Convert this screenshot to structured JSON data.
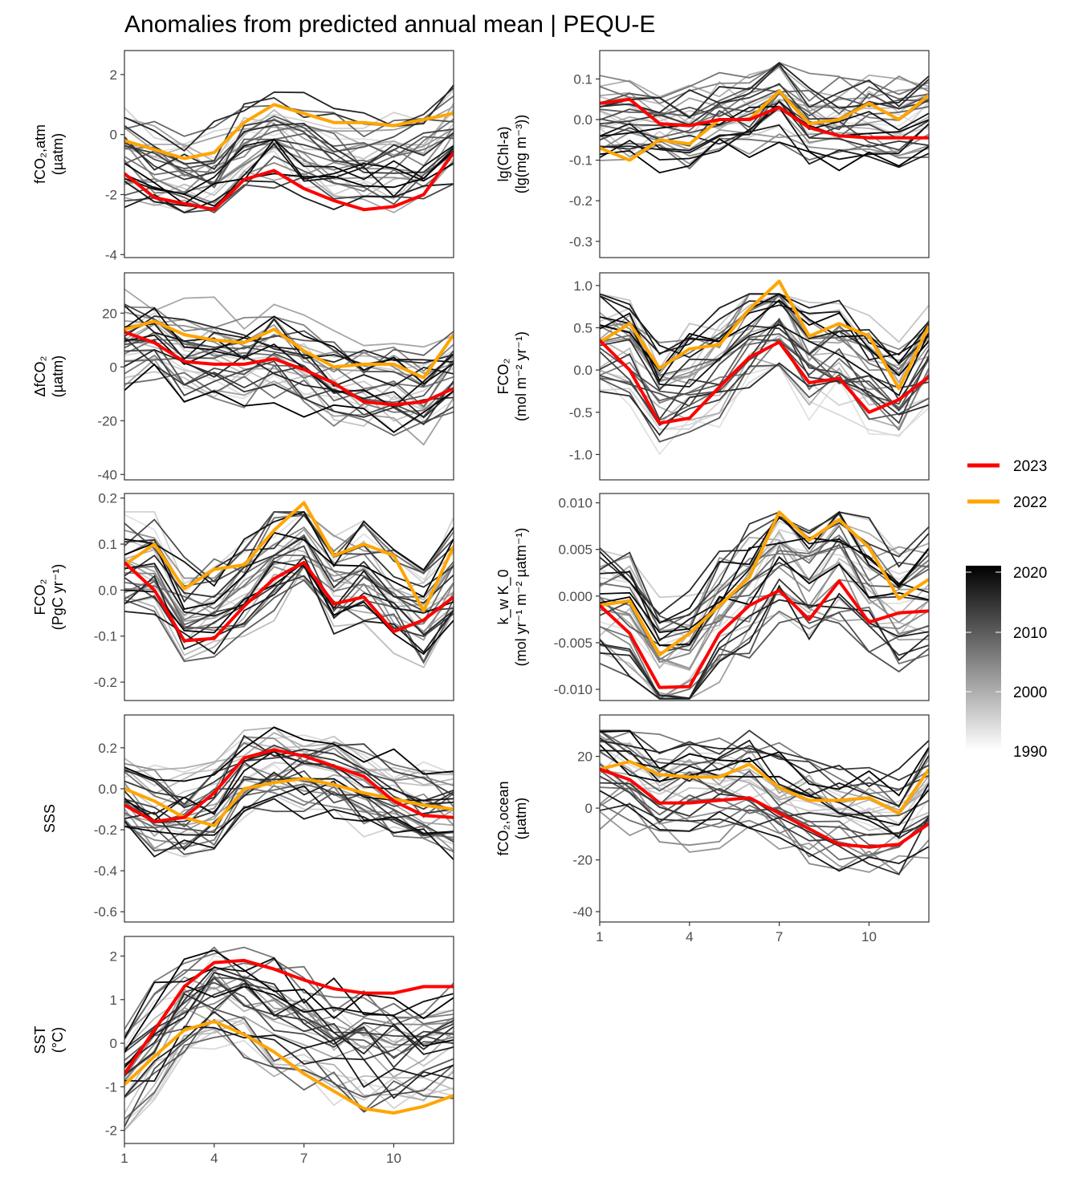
{
  "title": "Anomalies from predicted annual mean | PEQU-E",
  "legend": {
    "lines": [
      {
        "label": "2023",
        "color": "#ff0000"
      },
      {
        "label": "2022",
        "color": "#ffa500"
      }
    ],
    "colorbar": {
      "labels": [
        "2020",
        "2010",
        "2000",
        "1990"
      ],
      "range": [
        1990,
        2020
      ]
    }
  },
  "x_ticks": [
    "1",
    "4",
    "7",
    "10"
  ],
  "chart_data": [
    {
      "type": "line",
      "ylabel": [
        "fCO₂,atm",
        "(µatm)"
      ],
      "ylim": [
        -4.1,
        2.8
      ],
      "y_ticks": [
        "2",
        "0",
        "-2",
        "-4"
      ],
      "y_tick_values": [
        2,
        0,
        -2,
        -4
      ],
      "x": [
        1,
        2,
        3,
        4,
        5,
        6,
        7,
        8,
        9,
        10,
        11,
        12
      ],
      "series": [
        {
          "name": "2023",
          "values": [
            -1.3,
            -2.1,
            -2.3,
            -2.5,
            -1.5,
            -1.2,
            -1.8,
            -2.2,
            -2.5,
            -2.4,
            -2.0,
            -0.6
          ]
        },
        {
          "name": "2022",
          "values": [
            -0.2,
            -0.5,
            -0.8,
            -0.6,
            0.4,
            1.0,
            0.7,
            0.4,
            0.4,
            0.3,
            0.5,
            0.7
          ]
        }
      ],
      "background_range": [
        -2.6,
        2.4
      ]
    },
    {
      "type": "line",
      "ylabel": [
        "lg(Chl-a)",
        "(lg(mg m⁻³))"
      ],
      "ylim": [
        -0.34,
        0.17
      ],
      "y_ticks": [
        "0.1",
        "0.0",
        "-0.1",
        "-0.2",
        "-0.3"
      ],
      "y_tick_values": [
        0.1,
        0.0,
        -0.1,
        -0.2,
        -0.3
      ],
      "x": [
        1,
        2,
        3,
        4,
        5,
        6,
        7,
        8,
        9,
        10,
        11,
        12
      ],
      "series": [
        {
          "name": "2023",
          "values": [
            0.04,
            0.05,
            -0.01,
            -0.015,
            0.0,
            0.0,
            0.03,
            -0.02,
            -0.04,
            -0.045,
            -0.045,
            -0.045
          ]
        },
        {
          "name": "2022",
          "values": [
            -0.07,
            -0.1,
            -0.05,
            -0.06,
            0.0,
            0.0,
            0.07,
            -0.01,
            0.0,
            0.04,
            0.0,
            0.06
          ]
        }
      ],
      "background_range": [
        -0.2,
        0.14
      ]
    },
    {
      "type": "line",
      "ylabel": [
        "ΔfCO₂",
        "(µatm)"
      ],
      "ylim": [
        -42,
        35
      ],
      "y_ticks": [
        "20",
        "0",
        "-20",
        "-40"
      ],
      "y_tick_values": [
        20,
        0,
        -20,
        -40
      ],
      "x": [
        1,
        2,
        3,
        4,
        5,
        6,
        7,
        8,
        9,
        10,
        11,
        12
      ],
      "series": [
        {
          "name": "2023",
          "values": [
            13,
            9,
            2,
            1,
            1,
            3,
            -1,
            -6,
            -13,
            -14,
            -13,
            -8
          ]
        },
        {
          "name": "2022",
          "values": [
            14,
            17,
            12,
            10,
            9,
            14,
            6,
            0,
            1,
            1,
            -4,
            12
          ]
        }
      ],
      "background_range": [
        -30,
        30
      ]
    },
    {
      "type": "line",
      "ylabel": [
        "FCO₂",
        "(mol m⁻² yr⁻¹)"
      ],
      "ylim": [
        -1.3,
        1.15
      ],
      "y_ticks": [
        "1.0",
        "0.5",
        "0.0",
        "-0.5",
        "-1.0"
      ],
      "y_tick_values": [
        1.0,
        0.5,
        0.0,
        -0.5,
        -1.0
      ],
      "x": [
        1,
        2,
        3,
        4,
        5,
        6,
        7,
        8,
        9,
        10,
        11,
        12
      ],
      "series": [
        {
          "name": "2023",
          "values": [
            0.35,
            0.0,
            -0.63,
            -0.57,
            -0.2,
            0.15,
            0.33,
            -0.15,
            -0.1,
            -0.5,
            -0.35,
            -0.08
          ]
        },
        {
          "name": "2022",
          "values": [
            0.33,
            0.55,
            0.02,
            0.25,
            0.3,
            0.72,
            1.05,
            0.4,
            0.55,
            0.4,
            -0.22,
            0.52
          ]
        }
      ],
      "background_range": [
        -1.1,
        0.9
      ]
    },
    {
      "type": "line",
      "ylabel": [
        "FCO₂",
        "(PgC yr⁻¹)"
      ],
      "ylim": [
        -0.24,
        0.21
      ],
      "y_ticks": [
        "0.2",
        "0.1",
        "0.0",
        "-0.1",
        "-0.2"
      ],
      "y_tick_values": [
        0.2,
        0.1,
        0.0,
        -0.1,
        -0.2
      ],
      "x": [
        1,
        2,
        3,
        4,
        5,
        6,
        7,
        8,
        9,
        10,
        11,
        12
      ],
      "series": [
        {
          "name": "2023",
          "values": [
            0.06,
            0.0,
            -0.11,
            -0.105,
            -0.035,
            0.025,
            0.06,
            -0.03,
            -0.015,
            -0.09,
            -0.065,
            -0.015
          ]
        },
        {
          "name": "2022",
          "values": [
            0.055,
            0.1,
            0.003,
            0.045,
            0.055,
            0.13,
            0.19,
            0.075,
            0.1,
            0.075,
            -0.045,
            0.095
          ]
        }
      ],
      "background_range": [
        -0.2,
        0.17
      ]
    },
    {
      "type": "line",
      "ylabel": [
        "k_w K_0",
        "(mol yr⁻¹ m⁻² µatm⁻¹)"
      ],
      "ylim": [
        -0.0112,
        0.011
      ],
      "y_ticks": [
        "0.010",
        "0.005",
        "0.000",
        "-0.005",
        "-0.010"
      ],
      "y_tick_values": [
        0.01,
        0.005,
        0.0,
        -0.005,
        -0.01
      ],
      "x": [
        1,
        2,
        3,
        4,
        5,
        6,
        7,
        8,
        9,
        10,
        11,
        12
      ],
      "series": [
        {
          "name": "2023",
          "values": [
            -0.001,
            -0.004,
            -0.0098,
            -0.0097,
            -0.004,
            -0.001,
            0.0006,
            -0.0025,
            0.0016,
            -0.0028,
            -0.0018,
            -0.0016
          ]
        },
        {
          "name": "2022",
          "values": [
            -0.001,
            -0.0005,
            -0.0063,
            -0.004,
            -0.001,
            0.002,
            0.009,
            0.006,
            0.0082,
            0.0052,
            -0.0003,
            0.0018
          ]
        }
      ],
      "background_range": [
        -0.011,
        0.009
      ]
    },
    {
      "type": "line",
      "ylabel": [
        "SSS",
        ""
      ],
      "ylim": [
        -0.65,
        0.36
      ],
      "y_ticks": [
        "0.2",
        "0.0",
        "-0.2",
        "-0.4",
        "-0.6"
      ],
      "y_tick_values": [
        0.2,
        0.0,
        -0.2,
        -0.4,
        -0.6
      ],
      "x": [
        1,
        2,
        3,
        4,
        5,
        6,
        7,
        8,
        9,
        10,
        11,
        12
      ],
      "series": [
        {
          "name": "2023",
          "values": [
            -0.08,
            -0.16,
            -0.14,
            -0.02,
            0.15,
            0.19,
            0.16,
            0.11,
            0.06,
            -0.06,
            -0.13,
            -0.14
          ]
        },
        {
          "name": "2022",
          "values": [
            0.0,
            -0.06,
            -0.14,
            -0.18,
            0.0,
            0.03,
            0.05,
            0.02,
            -0.02,
            -0.05,
            -0.08,
            -0.1
          ]
        }
      ],
      "background_range": [
        -0.42,
        0.3
      ]
    },
    {
      "type": "line",
      "ylabel": [
        "fCO₂,ocean",
        "(µatm)"
      ],
      "ylim": [
        -44,
        36
      ],
      "y_ticks": [
        "20",
        "0",
        "-20",
        "-40"
      ],
      "y_tick_values": [
        20,
        0,
        -20,
        -40
      ],
      "x": [
        1,
        2,
        3,
        4,
        5,
        6,
        7,
        8,
        9,
        10,
        11,
        12
      ],
      "series": [
        {
          "name": "2023",
          "values": [
            15,
            11,
            2,
            2,
            3,
            4,
            -2,
            -8,
            -14,
            -15,
            -14,
            -6
          ]
        },
        {
          "name": "2022",
          "values": [
            15,
            18,
            13,
            12,
            12,
            17,
            8,
            3,
            3,
            4,
            -2,
            15
          ]
        }
      ],
      "background_range": [
        -32,
        30
      ]
    },
    {
      "type": "line",
      "ylabel": [
        "SST",
        "(°C)"
      ],
      "ylim": [
        -2.3,
        2.45
      ],
      "y_ticks": [
        "2",
        "1",
        "0",
        "-1",
        "-2"
      ],
      "y_tick_values": [
        2,
        1,
        0,
        -1,
        -2
      ],
      "x": [
        1,
        2,
        3,
        4,
        5,
        6,
        7,
        8,
        9,
        10,
        11,
        12
      ],
      "series": [
        {
          "name": "2023",
          "values": [
            -0.7,
            0.3,
            1.3,
            1.85,
            1.9,
            1.7,
            1.45,
            1.25,
            1.15,
            1.15,
            1.3,
            1.3
          ]
        },
        {
          "name": "2022",
          "values": [
            -0.95,
            -0.3,
            0.3,
            0.5,
            0.2,
            -0.2,
            -0.7,
            -1.1,
            -1.5,
            -1.6,
            -1.45,
            -1.2
          ]
        }
      ],
      "background_range": [
        -2.0,
        2.2
      ]
    }
  ]
}
